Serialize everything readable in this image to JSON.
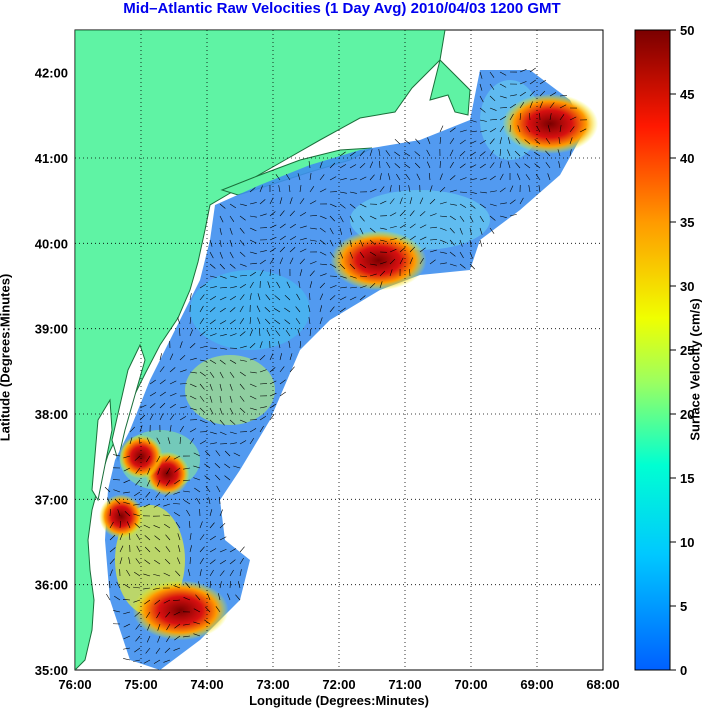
{
  "title": "Mid–Atlantic Raw Velocities (1 Day Avg) 2010/04/03 1200 GMT",
  "x_axis_label": "Longitude (Degrees:Minutes)",
  "y_axis_label": "Latitude (Degrees:Minutes)",
  "x_ticks": [
    "76:00",
    "75:00",
    "74:00",
    "73:00",
    "72:00",
    "71:00",
    "70:00",
    "69:00",
    "68:00"
  ],
  "y_ticks": [
    "42:00",
    "41:00",
    "40:00",
    "39:00",
    "38:00",
    "37:00",
    "36:00",
    "35:00"
  ],
  "colorbar": {
    "label": "Surface Velocity (cm/s)",
    "ticks": [
      "50",
      "45",
      "40",
      "35",
      "30",
      "25",
      "20",
      "15",
      "10",
      "5",
      "0"
    ],
    "min": 0,
    "max": 50
  },
  "colors": {
    "land": "#5ff3a4",
    "title_text": "#0000ee",
    "slow": "#2a7fff",
    "fast": "#8b0000"
  },
  "chart_data": {
    "type": "map",
    "lon_range": [
      -76,
      -68
    ],
    "lat_range": [
      35,
      42.5
    ],
    "grid": true,
    "colormap": "jet",
    "variable": "surface_velocity_cm_s",
    "high_speed_regions": [
      {
        "lon": -68.8,
        "lat": 41.4,
        "speed": 50
      },
      {
        "lon": -71.4,
        "lat": 39.8,
        "speed": 48
      },
      {
        "lon": -74.4,
        "lat": 35.7,
        "speed": 50
      },
      {
        "lon": -74.6,
        "lat": 37.3,
        "speed": 42
      },
      {
        "lon": -75.0,
        "lat": 37.5,
        "speed": 40
      },
      {
        "lon": -75.3,
        "lat": 36.8,
        "speed": 42
      }
    ]
  }
}
